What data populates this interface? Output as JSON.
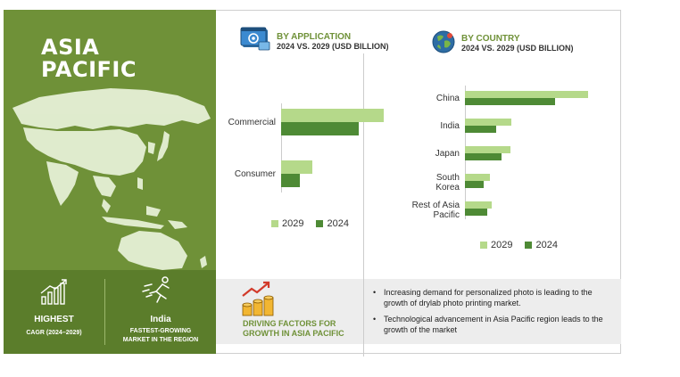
{
  "region": {
    "title_line1": "ASIA",
    "title_line2": "PACIFIC",
    "highest_label": "HIGHEST",
    "highest_sub": "CAGR (2024–2029)",
    "fastest_country": "India",
    "fastest_sub_line1": "FASTEST-GROWING",
    "fastest_sub_line2": "MARKET IN THE REGION"
  },
  "application_section": {
    "title": "BY APPLICATION",
    "subtitle": "2024 VS. 2029 (USD BILLION)",
    "icon": "settings-window-icon"
  },
  "country_section": {
    "title": "BY COUNTRY",
    "subtitle": "2024 VS. 2029 (USD BILLION)",
    "icon": "globe-icon"
  },
  "colors": {
    "y2029": "#b5d98a",
    "y2024": "#4e8a35",
    "panel": "#6f9138",
    "accent": "#6f9138"
  },
  "chart_data": [
    {
      "type": "bar",
      "orientation": "horizontal",
      "categories": [
        "Commercial",
        "Consumer"
      ],
      "series": [
        {
          "name": "2029",
          "values": [
            1.0,
            0.3
          ]
        },
        {
          "name": "2024",
          "values": [
            0.76,
            0.18
          ]
        }
      ],
      "xlim": [
        0,
        1
      ],
      "legend_position": "bottom",
      "grid": false
    },
    {
      "type": "bar",
      "orientation": "horizontal",
      "categories": [
        "China",
        "India",
        "Japan",
        "South Korea",
        "Rest of Asia Pacific"
      ],
      "category_lines": [
        [
          "China"
        ],
        [
          "India"
        ],
        [
          "Japan"
        ],
        [
          "South",
          "Korea"
        ],
        [
          "Rest of Asia",
          "Pacific"
        ]
      ],
      "series": [
        {
          "name": "2029",
          "values": [
            1.0,
            0.38,
            0.37,
            0.2,
            0.22
          ]
        },
        {
          "name": "2024",
          "values": [
            0.73,
            0.25,
            0.3,
            0.15,
            0.18
          ]
        }
      ],
      "xlim": [
        0,
        1
      ],
      "legend_position": "bottom",
      "grid": false
    }
  ],
  "factors": {
    "title_line1": "DRIVING FACTORS FOR",
    "title_line2": "GROWTH IN ASIA PACIFIC",
    "icon": "rising-coins-icon",
    "bullets": [
      "Increasing demand for personalized photo is leading to the growth of drylab photo printing market.",
      "Technological advancement in Asia Pacific region leads to the growth of the market"
    ]
  }
}
